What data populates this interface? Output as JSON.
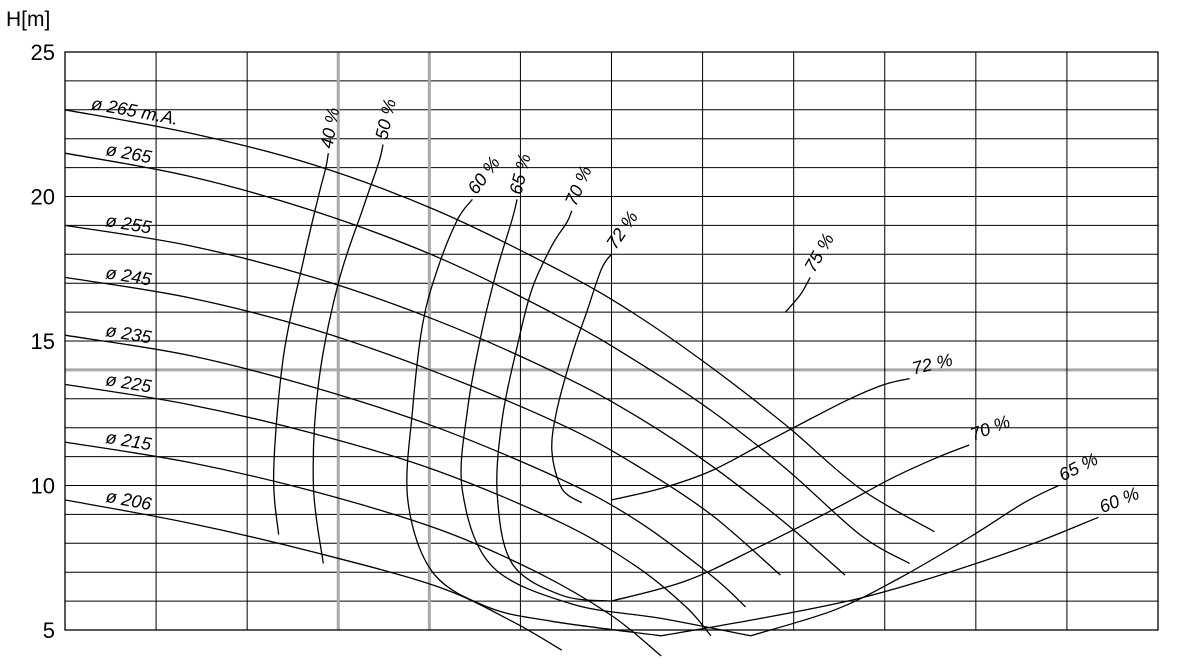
{
  "chart_data": {
    "type": "line",
    "ylabel": "H[m]",
    "xlabel": "",
    "ylim": [
      5,
      25
    ],
    "yticks": [
      "5",
      "10",
      "15",
      "20",
      "25"
    ],
    "grid": true,
    "impeller_curves": [
      {
        "name": "ø 265 m.A.",
        "points": [
          [
            0,
            23.0
          ],
          [
            0.25,
            22.2
          ],
          [
            0.5,
            21.1
          ],
          [
            0.75,
            19.5
          ],
          [
            1.0,
            17.4
          ],
          [
            1.15,
            15.9
          ],
          [
            1.3,
            14.1
          ],
          [
            1.45,
            12.1
          ],
          [
            1.6,
            9.9
          ],
          [
            1.75,
            8.4
          ]
        ]
      },
      {
        "name": "ø 265",
        "points": [
          [
            0,
            21.5
          ],
          [
            0.25,
            20.7
          ],
          [
            0.5,
            19.5
          ],
          [
            0.75,
            17.9
          ],
          [
            1.0,
            15.8
          ],
          [
            1.15,
            14.3
          ],
          [
            1.3,
            12.6
          ],
          [
            1.45,
            10.6
          ],
          [
            1.6,
            8.3
          ],
          [
            1.7,
            7.3
          ]
        ]
      },
      {
        "name": "ø 255",
        "points": [
          [
            0,
            19.0
          ],
          [
            0.25,
            18.3
          ],
          [
            0.5,
            17.2
          ],
          [
            0.75,
            15.7
          ],
          [
            1.0,
            13.8
          ],
          [
            1.15,
            12.4
          ],
          [
            1.3,
            10.7
          ],
          [
            1.45,
            8.7
          ],
          [
            1.57,
            6.9
          ]
        ]
      },
      {
        "name": "ø 245",
        "points": [
          [
            0,
            17.2
          ],
          [
            0.25,
            16.5
          ],
          [
            0.5,
            15.4
          ],
          [
            0.75,
            13.9
          ],
          [
            1.0,
            12.1
          ],
          [
            1.15,
            10.7
          ],
          [
            1.3,
            9.0
          ],
          [
            1.44,
            6.9
          ]
        ]
      },
      {
        "name": "ø 235",
        "points": [
          [
            0,
            15.2
          ],
          [
            0.25,
            14.5
          ],
          [
            0.5,
            13.4
          ],
          [
            0.75,
            12.0
          ],
          [
            1.0,
            10.2
          ],
          [
            1.15,
            8.8
          ],
          [
            1.3,
            6.9
          ],
          [
            1.37,
            5.8
          ]
        ]
      },
      {
        "name": "ø 225",
        "points": [
          [
            0,
            13.5
          ],
          [
            0.25,
            12.8
          ],
          [
            0.5,
            11.8
          ],
          [
            0.75,
            10.5
          ],
          [
            1.0,
            8.7
          ],
          [
            1.15,
            7.2
          ],
          [
            1.25,
            5.8
          ],
          [
            1.3,
            4.8
          ]
        ]
      },
      {
        "name": "ø 215",
        "points": [
          [
            0,
            11.5
          ],
          [
            0.25,
            10.8
          ],
          [
            0.5,
            9.8
          ],
          [
            0.75,
            8.5
          ],
          [
            0.95,
            7.0
          ],
          [
            1.1,
            5.5
          ],
          [
            1.2,
            4.1
          ]
        ]
      },
      {
        "name": "ø 206",
        "points": [
          [
            0,
            9.5
          ],
          [
            0.25,
            8.7
          ],
          [
            0.5,
            7.7
          ],
          [
            0.75,
            6.5
          ],
          [
            0.9,
            5.3
          ],
          [
            1.0,
            4.3
          ]
        ]
      }
    ],
    "efficiency_curves": [
      {
        "label": "40 %",
        "points": [
          [
            0.43,
            8.3
          ],
          [
            0.42,
            10.5
          ],
          [
            0.44,
            14.5
          ],
          [
            0.48,
            17.8
          ],
          [
            0.51,
            20.0
          ],
          [
            0.525,
            21.0
          ],
          [
            0.53,
            21.5
          ]
        ]
      },
      {
        "name": "50 %",
        "points": [
          [
            0.52,
            7.3
          ],
          [
            0.5,
            10.0
          ],
          [
            0.51,
            13.5
          ],
          [
            0.55,
            17.0
          ],
          [
            0.6,
            19.6
          ],
          [
            0.632,
            21.2
          ],
          [
            0.64,
            21.8
          ]
        ]
      },
      {
        "name": "60 %",
        "points": [
          [
            1.2,
            4.8
          ],
          [
            0.98,
            5.3
          ],
          [
            0.85,
            5.8
          ],
          [
            0.74,
            7.0
          ],
          [
            0.69,
            9.5
          ],
          [
            0.7,
            12.7
          ],
          [
            0.72,
            15.6
          ],
          [
            0.75,
            17.5
          ],
          [
            0.79,
            19.2
          ],
          [
            0.82,
            19.9
          ]
        ]
      },
      {
        "name": "65 %",
        "points": [
          [
            1.38,
            4.8
          ],
          [
            1.2,
            5.4
          ],
          [
            1.02,
            5.9
          ],
          [
            0.86,
            7.2
          ],
          [
            0.8,
            9.8
          ],
          [
            0.81,
            12.6
          ],
          [
            0.84,
            15.4
          ],
          [
            0.87,
            17.5
          ],
          [
            0.9,
            19.2
          ],
          [
            0.91,
            19.9
          ]
        ]
      },
      {
        "name": "70 %",
        "points": [
          [
            1.1,
            6.0
          ],
          [
            1.0,
            6.2
          ],
          [
            0.9,
            7.3
          ],
          [
            0.87,
            9.7
          ],
          [
            0.88,
            12.3
          ],
          [
            0.91,
            14.8
          ],
          [
            0.94,
            16.8
          ],
          [
            0.98,
            18.3
          ],
          [
            1.01,
            19.1
          ],
          [
            1.02,
            19.5
          ]
        ]
      },
      {
        "name": "72 %",
        "points": [
          [
            1.04,
            9.4
          ],
          [
            1.0,
            9.9
          ],
          [
            0.98,
            11.2
          ],
          [
            0.99,
            12.6
          ],
          [
            1.02,
            14.5
          ],
          [
            1.05,
            16.0
          ],
          [
            1.08,
            17.5
          ],
          [
            1.1,
            18.0
          ]
        ]
      },
      {
        "name": "75 %",
        "points": [
          [
            1.45,
            16.0
          ],
          [
            1.48,
            16.6
          ],
          [
            1.5,
            17.2
          ]
        ]
      },
      {
        "name": "72 %",
        "points": [
          [
            1.1,
            9.5
          ],
          [
            1.2,
            9.9
          ],
          [
            1.3,
            10.5
          ],
          [
            1.4,
            11.4
          ],
          [
            1.5,
            12.3
          ],
          [
            1.58,
            13.0
          ],
          [
            1.65,
            13.5
          ],
          [
            1.7,
            13.7
          ]
        ]
      },
      {
        "name": "70 %",
        "points": [
          [
            1.1,
            6.0
          ],
          [
            1.25,
            6.7
          ],
          [
            1.4,
            7.9
          ],
          [
            1.55,
            9.2
          ],
          [
            1.67,
            10.3
          ],
          [
            1.76,
            11.0
          ],
          [
            1.82,
            11.4
          ]
        ]
      },
      {
        "name": "65 %",
        "points": [
          [
            1.38,
            4.8
          ],
          [
            1.55,
            5.7
          ],
          [
            1.68,
            6.8
          ],
          [
            1.82,
            8.2
          ],
          [
            1.93,
            9.4
          ],
          [
            2.0,
            10.0
          ]
        ]
      },
      {
        "name": "60 %",
        "points": [
          [
            1.2,
            4.8
          ],
          [
            1.4,
            5.4
          ],
          [
            1.6,
            6.1
          ],
          [
            1.78,
            7.0
          ],
          [
            1.95,
            8.0
          ],
          [
            2.08,
            8.9
          ]
        ]
      }
    ]
  }
}
